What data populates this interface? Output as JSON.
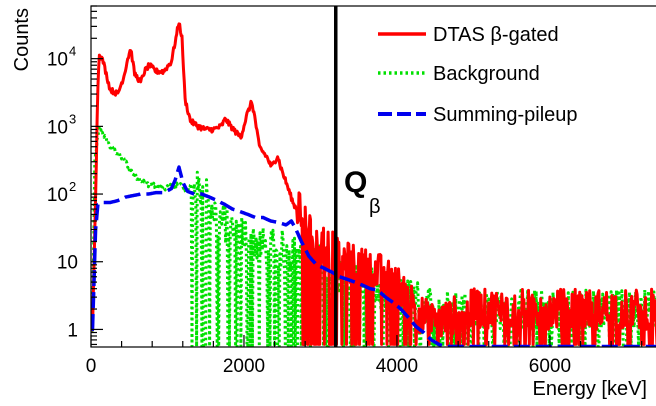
{
  "chart_data": {
    "type": "line",
    "title": "",
    "xlabel": "Energy [keV]",
    "ylabel": "Counts",
    "xlim": [
      0,
      7400
    ],
    "ylim": [
      0.55,
      60000
    ],
    "yscale": "log",
    "grid": false,
    "legend_position": "top-right",
    "x_ticks": [
      {
        "value": 0,
        "label": "0"
      },
      {
        "value": 2000,
        "label": "2000"
      },
      {
        "value": 4000,
        "label": "4000"
      },
      {
        "value": 6000,
        "label": "6000"
      }
    ],
    "y_ticks": [
      {
        "value": 1,
        "label": "1"
      },
      {
        "value": 10,
        "label": "10"
      },
      {
        "value": 100,
        "label": "10",
        "sup": "2"
      },
      {
        "value": 1000,
        "label": "10",
        "sup": "3"
      },
      {
        "value": 10000,
        "label": "10",
        "sup": "4"
      }
    ],
    "series": [
      {
        "name": "DTAS β-gated",
        "color": "#ff0000",
        "style": "solid",
        "points": [
          [
            20,
            1
          ],
          [
            60,
            100
          ],
          [
            90,
            4000
          ],
          [
            110,
            12000
          ],
          [
            160,
            9000
          ],
          [
            250,
            3500
          ],
          [
            350,
            3000
          ],
          [
            430,
            5500
          ],
          [
            480,
            10000
          ],
          [
            520,
            14000
          ],
          [
            570,
            6000
          ],
          [
            650,
            4500
          ],
          [
            700,
            6500
          ],
          [
            760,
            8000
          ],
          [
            850,
            6500
          ],
          [
            950,
            6500
          ],
          [
            1050,
            9000
          ],
          [
            1110,
            20000
          ],
          [
            1150,
            35000
          ],
          [
            1190,
            20000
          ],
          [
            1230,
            2500
          ],
          [
            1300,
            1200
          ],
          [
            1400,
            1000
          ],
          [
            1500,
            900
          ],
          [
            1600,
            900
          ],
          [
            1700,
            1000
          ],
          [
            1760,
            1300
          ],
          [
            1800,
            1100
          ],
          [
            1900,
            800
          ],
          [
            1960,
            700
          ],
          [
            2040,
            1500
          ],
          [
            2100,
            2300
          ],
          [
            2140,
            1400
          ],
          [
            2200,
            500
          ],
          [
            2300,
            350
          ],
          [
            2360,
            250
          ],
          [
            2400,
            300
          ],
          [
            2440,
            370
          ],
          [
            2480,
            250
          ],
          [
            2550,
            150
          ],
          [
            2650,
            70
          ],
          [
            2750,
            50
          ],
          [
            2850,
            30
          ],
          [
            2950,
            20
          ],
          [
            3050,
            18
          ],
          [
            3150,
            15
          ],
          [
            3250,
            10
          ],
          [
            3350,
            10
          ],
          [
            3450,
            9
          ],
          [
            3550,
            8
          ],
          [
            3650,
            8
          ],
          [
            3750,
            7
          ],
          [
            3850,
            6
          ],
          [
            3950,
            5
          ],
          [
            4050,
            4
          ],
          [
            4150,
            3
          ],
          [
            4250,
            2
          ],
          [
            4350,
            1.5
          ],
          [
            4500,
            1.2
          ],
          [
            4700,
            1.5
          ],
          [
            5000,
            2
          ],
          [
            5500,
            2
          ],
          [
            6000,
            2
          ],
          [
            6500,
            2
          ],
          [
            7000,
            2
          ],
          [
            7400,
            2
          ]
        ],
        "noisy_from": 2700,
        "noise_floor": 0.6
      },
      {
        "name": "Background",
        "color": "#00e000",
        "style": "dotted",
        "points": [
          [
            20,
            1
          ],
          [
            50,
            300
          ],
          [
            80,
            600
          ],
          [
            110,
            900
          ],
          [
            150,
            800
          ],
          [
            250,
            500
          ],
          [
            350,
            400
          ],
          [
            450,
            300
          ],
          [
            550,
            200
          ],
          [
            650,
            160
          ],
          [
            750,
            140
          ],
          [
            850,
            130
          ],
          [
            950,
            120
          ],
          [
            1050,
            130
          ],
          [
            1100,
            130
          ],
          [
            1150,
            150
          ],
          [
            1200,
            120
          ],
          [
            1300,
            110
          ],
          [
            1400,
            110
          ],
          [
            1460,
            150
          ],
          [
            1500,
            140
          ],
          [
            1550,
            70
          ],
          [
            1700,
            40
          ],
          [
            1850,
            30
          ],
          [
            2000,
            25
          ],
          [
            2150,
            20
          ],
          [
            2300,
            15
          ],
          [
            2500,
            15
          ],
          [
            2700,
            12
          ],
          [
            2900,
            10
          ],
          [
            3100,
            8
          ],
          [
            3300,
            6
          ],
          [
            3500,
            5
          ],
          [
            3700,
            4
          ],
          [
            3900,
            3
          ],
          [
            4100,
            3
          ],
          [
            4300,
            2.5
          ],
          [
            4600,
            2
          ],
          [
            5000,
            2
          ],
          [
            5500,
            2
          ],
          [
            6000,
            2
          ],
          [
            6500,
            2
          ],
          [
            7000,
            2
          ],
          [
            7400,
            2
          ]
        ],
        "noisy_from": 1300,
        "noise_floor": 0.55
      },
      {
        "name": "Summing-pileup",
        "color": "#0000ee",
        "style": "dashed",
        "points": [
          [
            20,
            1
          ],
          [
            60,
            30
          ],
          [
            90,
            70
          ],
          [
            150,
            75
          ],
          [
            250,
            75
          ],
          [
            350,
            80
          ],
          [
            450,
            90
          ],
          [
            550,
            95
          ],
          [
            650,
            100
          ],
          [
            750,
            100
          ],
          [
            850,
            105
          ],
          [
            950,
            105
          ],
          [
            1050,
            120
          ],
          [
            1100,
            160
          ],
          [
            1150,
            250
          ],
          [
            1200,
            150
          ],
          [
            1260,
            110
          ],
          [
            1350,
            100
          ],
          [
            1450,
            100
          ],
          [
            1550,
            90
          ],
          [
            1650,
            80
          ],
          [
            1750,
            70
          ],
          [
            1850,
            60
          ],
          [
            1950,
            55
          ],
          [
            2050,
            50
          ],
          [
            2150,
            45
          ],
          [
            2250,
            45
          ],
          [
            2350,
            40
          ],
          [
            2450,
            38
          ],
          [
            2550,
            35
          ],
          [
            2620,
            40
          ],
          [
            2680,
            30
          ],
          [
            2750,
            20
          ],
          [
            2850,
            12
          ],
          [
            2950,
            9
          ],
          [
            3050,
            8
          ],
          [
            3150,
            7
          ],
          [
            3250,
            6
          ],
          [
            3350,
            5.5
          ],
          [
            3450,
            5
          ],
          [
            3550,
            4.5
          ],
          [
            3650,
            4
          ],
          [
            3750,
            3.8
          ],
          [
            3850,
            3
          ],
          [
            3950,
            2.5
          ],
          [
            4050,
            2
          ],
          [
            4150,
            1.5
          ],
          [
            4250,
            1.1
          ],
          [
            4350,
            0.9
          ],
          [
            4450,
            0.7
          ],
          [
            4550,
            0.6
          ],
          [
            4650,
            0.55
          ],
          [
            7400,
            0.55
          ]
        ]
      }
    ],
    "annotations": [
      {
        "text": "Q",
        "subscript": "β",
        "x": 3200,
        "kind": "vertical_line",
        "color": "#000000"
      }
    ]
  }
}
